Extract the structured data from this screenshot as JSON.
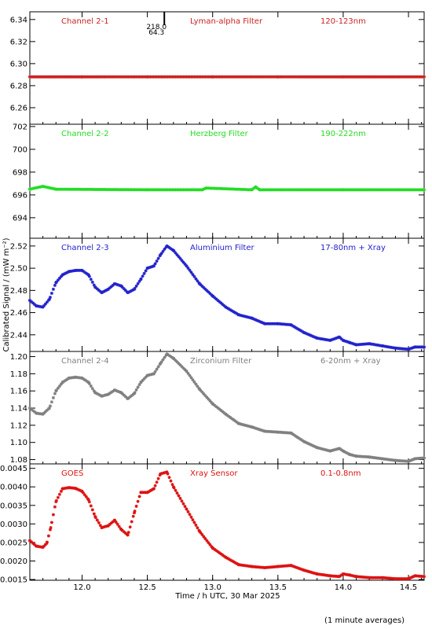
{
  "figure": {
    "ylabel": "Calibrated Signal / (mW m⁻²)",
    "xlabel": "Time / h UTC, 30 Mar 2025",
    "footnote": "(1 minute averages)",
    "marker_note": [
      "218.0",
      "64.3"
    ],
    "marker_time": 12.63
  },
  "chart_data": [
    {
      "type": "scatter",
      "channel": "Channel 2-1",
      "filter": "Lyman-alpha Filter",
      "band": "120-123nm",
      "color": "#cc2222",
      "xlim": [
        11.6,
        14.62
      ],
      "ylim": [
        6.245,
        6.347
      ],
      "yticks": [
        6.26,
        6.28,
        6.3,
        6.32,
        6.34
      ],
      "ytick_labels": [
        "6.26",
        "6.28",
        "6.30",
        "6.32",
        "6.34"
      ],
      "x": [
        11.6,
        12.0,
        12.5,
        13.0,
        13.5,
        14.0,
        14.62
      ],
      "y": [
        6.288,
        6.288,
        6.288,
        6.288,
        6.288,
        6.288,
        6.288
      ]
    },
    {
      "type": "scatter",
      "channel": "Channel 2-2",
      "filter": "Herzberg Filter",
      "band": "190-222nm",
      "color": "#22dd22",
      "xlim": [
        11.6,
        14.62
      ],
      "ylim": [
        692.2,
        702.2
      ],
      "yticks": [
        694,
        696,
        698,
        700,
        702
      ],
      "ytick_labels": [
        "694",
        "696",
        "698",
        "700",
        "702"
      ],
      "x": [
        11.6,
        11.7,
        11.8,
        12.5,
        12.92,
        12.95,
        13.3,
        13.33,
        13.36,
        14.0,
        14.62
      ],
      "y": [
        696.5,
        696.75,
        696.5,
        696.45,
        696.45,
        696.6,
        696.45,
        696.7,
        696.45,
        696.45,
        696.45
      ]
    },
    {
      "type": "scatter",
      "channel": "Channel 2-3",
      "filter": "Aluminium Filter",
      "band": "17-80nm + Xray",
      "color": "#2222cc",
      "xlim": [
        11.6,
        14.62
      ],
      "ylim": [
        2.425,
        2.527
      ],
      "yticks": [
        2.44,
        2.46,
        2.48,
        2.5,
        2.52
      ],
      "ytick_labels": [
        "2.44",
        "2.46",
        "2.48",
        "2.50",
        "2.52"
      ],
      "x": [
        11.6,
        11.65,
        11.7,
        11.75,
        11.8,
        11.85,
        11.9,
        11.95,
        12.0,
        12.05,
        12.1,
        12.15,
        12.2,
        12.25,
        12.3,
        12.35,
        12.4,
        12.45,
        12.5,
        12.55,
        12.6,
        12.65,
        12.7,
        12.8,
        12.9,
        13.0,
        13.1,
        13.2,
        13.3,
        13.4,
        13.5,
        13.6,
        13.7,
        13.8,
        13.9,
        13.97,
        14.0,
        14.05,
        14.1,
        14.2,
        14.3,
        14.4,
        14.5,
        14.55,
        14.62
      ],
      "y": [
        2.471,
        2.466,
        2.465,
        2.472,
        2.487,
        2.494,
        2.497,
        2.498,
        2.498,
        2.494,
        2.483,
        2.478,
        2.481,
        2.486,
        2.484,
        2.478,
        2.481,
        2.49,
        2.5,
        2.502,
        2.512,
        2.52,
        2.516,
        2.502,
        2.486,
        2.475,
        2.465,
        2.458,
        2.455,
        2.45,
        2.45,
        2.449,
        2.442,
        2.437,
        2.435,
        2.438,
        2.435,
        2.433,
        2.431,
        2.432,
        2.43,
        2.428,
        2.427,
        2.429,
        2.429
      ]
    },
    {
      "type": "scatter",
      "channel": "Channel 2-4",
      "filter": "Zirconium Filter",
      "band": "6-20nm + Xray",
      "color": "#808080",
      "xlim": [
        11.6,
        14.62
      ],
      "ylim": [
        1.075,
        1.206
      ],
      "yticks": [
        1.08,
        1.1,
        1.12,
        1.14,
        1.16,
        1.18,
        1.2
      ],
      "ytick_labels": [
        "1.08",
        "1.10",
        "1.12",
        "1.14",
        "1.16",
        "1.18",
        "1.20"
      ],
      "x": [
        11.6,
        11.65,
        11.7,
        11.75,
        11.8,
        11.85,
        11.9,
        11.95,
        12.0,
        12.05,
        12.1,
        12.15,
        12.2,
        12.25,
        12.3,
        12.35,
        12.4,
        12.45,
        12.5,
        12.55,
        12.6,
        12.65,
        12.7,
        12.8,
        12.9,
        13.0,
        13.1,
        13.2,
        13.3,
        13.4,
        13.5,
        13.6,
        13.7,
        13.8,
        13.9,
        13.97,
        14.0,
        14.05,
        14.1,
        14.2,
        14.3,
        14.4,
        14.5,
        14.55,
        14.62
      ],
      "y": [
        1.14,
        1.134,
        1.133,
        1.14,
        1.16,
        1.17,
        1.175,
        1.176,
        1.175,
        1.17,
        1.158,
        1.154,
        1.156,
        1.161,
        1.158,
        1.151,
        1.157,
        1.17,
        1.178,
        1.18,
        1.192,
        1.203,
        1.198,
        1.183,
        1.162,
        1.145,
        1.133,
        1.122,
        1.118,
        1.113,
        1.112,
        1.111,
        1.101,
        1.094,
        1.09,
        1.093,
        1.09,
        1.086,
        1.084,
        1.083,
        1.081,
        1.079,
        1.078,
        1.081,
        1.082
      ]
    },
    {
      "type": "scatter",
      "channel": "GOES",
      "filter": "Xray Sensor",
      "band": "0.1-0.8nm",
      "color": "#dd1111",
      "xlim": [
        11.6,
        14.62
      ],
      "ylim": [
        0.00148,
        0.00462
      ],
      "yticks": [
        0.0015,
        0.002,
        0.0025,
        0.003,
        0.0035,
        0.004,
        0.0045
      ],
      "ytick_labels": [
        "0.0015",
        "0.0020",
        "0.0025",
        "0.0030",
        "0.0035",
        "0.0040",
        "0.0045"
      ],
      "xticks": [
        12.0,
        12.5,
        13.0,
        13.5,
        14.0,
        14.5
      ],
      "xtick_labels": [
        "12.0",
        "12.5",
        "13.0",
        "13.5",
        "14.0",
        "14.5"
      ],
      "x": [
        11.6,
        11.65,
        11.7,
        11.73,
        11.76,
        11.8,
        11.85,
        11.9,
        11.95,
        12.0,
        12.05,
        12.1,
        12.15,
        12.2,
        12.25,
        12.3,
        12.35,
        12.4,
        12.45,
        12.5,
        12.55,
        12.6,
        12.65,
        12.7,
        12.8,
        12.9,
        13.0,
        13.1,
        13.2,
        13.3,
        13.4,
        13.5,
        13.6,
        13.7,
        13.8,
        13.9,
        13.97,
        14.0,
        14.05,
        14.1,
        14.2,
        14.3,
        14.4,
        14.5,
        14.55,
        14.62
      ],
      "y": [
        0.00255,
        0.0024,
        0.00237,
        0.00248,
        0.0029,
        0.0036,
        0.00395,
        0.00398,
        0.00396,
        0.00388,
        0.00365,
        0.0032,
        0.0029,
        0.00295,
        0.0031,
        0.00285,
        0.0027,
        0.0033,
        0.00385,
        0.00385,
        0.00395,
        0.00435,
        0.0044,
        0.004,
        0.0034,
        0.0028,
        0.00235,
        0.0021,
        0.0019,
        0.00185,
        0.00182,
        0.00185,
        0.00188,
        0.00175,
        0.00165,
        0.0016,
        0.00158,
        0.00165,
        0.00162,
        0.00158,
        0.00155,
        0.00155,
        0.00152,
        0.00152,
        0.0016,
        0.00158
      ]
    }
  ]
}
